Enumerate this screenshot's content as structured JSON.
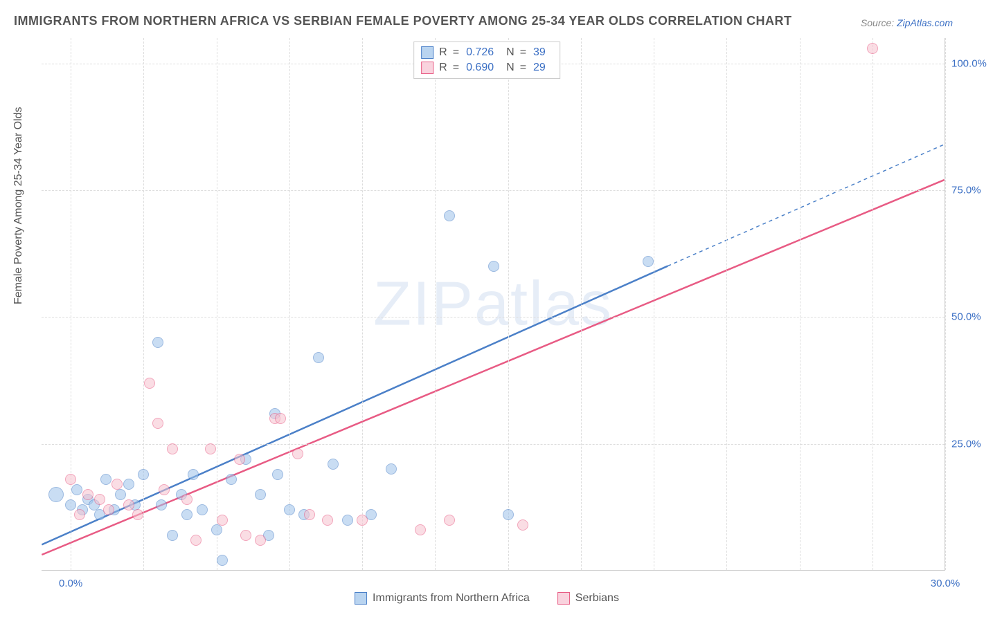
{
  "title": "IMMIGRANTS FROM NORTHERN AFRICA VS SERBIAN FEMALE POVERTY AMONG 25-34 YEAR OLDS CORRELATION CHART",
  "source_label": "Source: ",
  "source_value": "ZipAtlas.com",
  "watermark": {
    "part1": "ZIP",
    "part2": "atlas"
  },
  "chart": {
    "type": "scatter-correlation",
    "x_axis": {
      "min": -1.0,
      "max": 30.0,
      "ticks": [
        {
          "v": 0.0,
          "l": "0.0%"
        },
        {
          "v": 30.0,
          "l": "30.0%"
        }
      ],
      "grid_step": 2.5
    },
    "y_axis": {
      "min": 0.0,
      "max": 105.0,
      "label": "Female Poverty Among 25-34 Year Olds",
      "ticks": [
        {
          "v": 25.0,
          "l": "25.0%"
        },
        {
          "v": 50.0,
          "l": "50.0%"
        },
        {
          "v": 75.0,
          "l": "75.0%"
        },
        {
          "v": 100.0,
          "l": "100.0%"
        }
      ]
    },
    "label_fontsize": 16,
    "tick_fontsize": 15,
    "tick_color": "#3b6fc4",
    "background_color": "#ffffff",
    "grid_color": "#dddddd",
    "grid_dash": "4,3",
    "plot_border_color": "#cccccc",
    "marker_radius": 8,
    "marker_opacity": 0.55,
    "series": [
      {
        "name": "Immigrants from Northern Africa",
        "color_fill": "#9ec3ea",
        "color_stroke": "#4b80c8",
        "swatch_fill": "#b9d4f0",
        "r": 0.726,
        "n": 39,
        "trend": {
          "x1": -1.0,
          "y1": 5.0,
          "x2": 20.5,
          "y2": 60.0,
          "x_ext": 30.0,
          "y_ext": 84.0,
          "width": 2.5
        },
        "points": [
          {
            "x": -0.5,
            "y": 15,
            "r": 11
          },
          {
            "x": 0.0,
            "y": 13
          },
          {
            "x": 0.2,
            "y": 16
          },
          {
            "x": 0.4,
            "y": 12
          },
          {
            "x": 0.6,
            "y": 14
          },
          {
            "x": 0.8,
            "y": 13
          },
          {
            "x": 1.0,
            "y": 11
          },
          {
            "x": 1.2,
            "y": 18
          },
          {
            "x": 1.5,
            "y": 12
          },
          {
            "x": 1.7,
            "y": 15
          },
          {
            "x": 2.0,
            "y": 17
          },
          {
            "x": 2.2,
            "y": 13
          },
          {
            "x": 2.5,
            "y": 19
          },
          {
            "x": 3.0,
            "y": 45
          },
          {
            "x": 3.1,
            "y": 13
          },
          {
            "x": 3.5,
            "y": 7
          },
          {
            "x": 3.8,
            "y": 15
          },
          {
            "x": 4.0,
            "y": 11
          },
          {
            "x": 4.2,
            "y": 19
          },
          {
            "x": 4.5,
            "y": 12
          },
          {
            "x": 5.0,
            "y": 8
          },
          {
            "x": 5.2,
            "y": 2
          },
          {
            "x": 5.5,
            "y": 18
          },
          {
            "x": 6.0,
            "y": 22
          },
          {
            "x": 6.5,
            "y": 15
          },
          {
            "x": 7.0,
            "y": 31
          },
          {
            "x": 7.1,
            "y": 19
          },
          {
            "x": 7.5,
            "y": 12
          },
          {
            "x": 8.0,
            "y": 11
          },
          {
            "x": 8.5,
            "y": 42
          },
          {
            "x": 9.0,
            "y": 21
          },
          {
            "x": 9.5,
            "y": 10
          },
          {
            "x": 10.3,
            "y": 11
          },
          {
            "x": 11.0,
            "y": 20
          },
          {
            "x": 13.0,
            "y": 70
          },
          {
            "x": 14.5,
            "y": 60
          },
          {
            "x": 15.0,
            "y": 11
          },
          {
            "x": 19.8,
            "y": 61
          },
          {
            "x": 6.8,
            "y": 7
          }
        ]
      },
      {
        "name": "Serbians",
        "color_fill": "#f6c2cf",
        "color_stroke": "#e85b84",
        "swatch_fill": "#f9d3de",
        "r": 0.69,
        "n": 29,
        "trend": {
          "x1": -1.0,
          "y1": 3.0,
          "x2": 30.0,
          "y2": 77.0,
          "width": 2.5
        },
        "points": [
          {
            "x": 0.0,
            "y": 18
          },
          {
            "x": 0.3,
            "y": 11
          },
          {
            "x": 0.6,
            "y": 15
          },
          {
            "x": 1.0,
            "y": 14
          },
          {
            "x": 1.3,
            "y": 12
          },
          {
            "x": 1.6,
            "y": 17
          },
          {
            "x": 2.0,
            "y": 13
          },
          {
            "x": 2.3,
            "y": 11
          },
          {
            "x": 2.7,
            "y": 37
          },
          {
            "x": 3.0,
            "y": 29
          },
          {
            "x": 3.2,
            "y": 16
          },
          {
            "x": 3.5,
            "y": 24
          },
          {
            "x": 4.0,
            "y": 14
          },
          {
            "x": 4.3,
            "y": 6
          },
          {
            "x": 4.8,
            "y": 24
          },
          {
            "x": 5.2,
            "y": 10
          },
          {
            "x": 5.8,
            "y": 22
          },
          {
            "x": 6.0,
            "y": 7
          },
          {
            "x": 6.5,
            "y": 6
          },
          {
            "x": 7.0,
            "y": 30
          },
          {
            "x": 7.2,
            "y": 30
          },
          {
            "x": 7.8,
            "y": 23
          },
          {
            "x": 8.2,
            "y": 11
          },
          {
            "x": 8.8,
            "y": 10
          },
          {
            "x": 10.0,
            "y": 10
          },
          {
            "x": 12.0,
            "y": 8
          },
          {
            "x": 13.0,
            "y": 10
          },
          {
            "x": 15.5,
            "y": 9
          },
          {
            "x": 27.5,
            "y": 103
          }
        ]
      }
    ],
    "legend_top": {
      "r_label": "R",
      "n_label": "N",
      "eq": "="
    }
  }
}
